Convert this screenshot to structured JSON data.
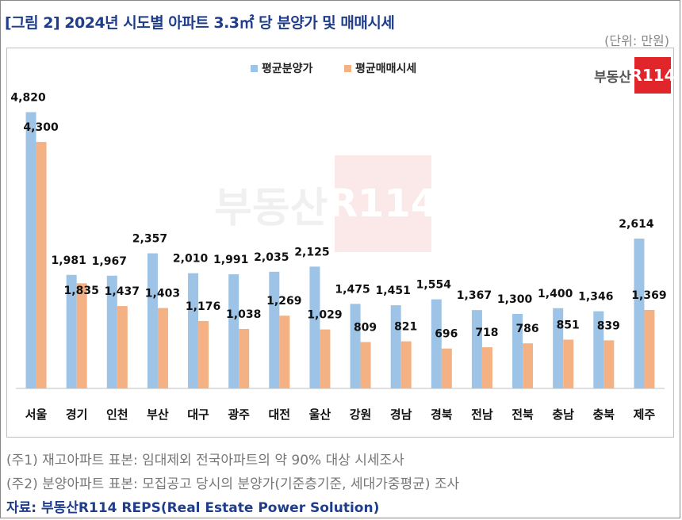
{
  "title": "[그림 2] 2024년 시도별 아파트 3.3㎡ 당 분양가 및 매매시세",
  "unit": "(단위: 만원)",
  "logo": {
    "text": "부동산",
    "box_text": "R114"
  },
  "notes": [
    "(주1) 재고아파트 표본: 임대제외 전국아파트의 약 90% 대상 시세조사",
    "(주2) 분양아파트 표본: 모집공고 당시의 분양가(기준층기준, 세대가중평균) 조사"
  ],
  "source": "자료: 부동산R114 REPS(Real Estate Power Solution)",
  "colors": {
    "series1": "#9dc3e6",
    "series2": "#f4b183",
    "title": "#1f3d8a",
    "logo_red": "#e0262b"
  },
  "chart_data": {
    "type": "bar",
    "categories": [
      "서울",
      "경기",
      "인천",
      "부산",
      "대구",
      "광주",
      "대전",
      "울산",
      "강원",
      "경남",
      "경북",
      "전남",
      "전북",
      "충남",
      "충북",
      "제주"
    ],
    "series": [
      {
        "name": "평균분양가",
        "values": [
          4820,
          1981,
          1967,
          2357,
          2010,
          1991,
          2035,
          2125,
          1475,
          1451,
          1554,
          1367,
          1300,
          1400,
          1346,
          2614
        ],
        "labels": [
          "4,820",
          "1,981",
          "1,967",
          "2,357",
          "2,010",
          "1,991",
          "2,035",
          "2,125",
          "1,475",
          "1,451",
          "1,554",
          "1,367",
          "1,300",
          "1,400",
          "1,346",
          "2,614"
        ]
      },
      {
        "name": "평균매매시세",
        "values": [
          4300,
          1835,
          1437,
          1403,
          1176,
          1038,
          1269,
          1029,
          809,
          821,
          696,
          718,
          786,
          851,
          839,
          1369
        ],
        "labels": [
          "4,300",
          "1,835",
          "1,437",
          "1,403",
          "1,176",
          "1,038",
          "1,269",
          "1,029",
          "809",
          "821",
          "696",
          "718",
          "786",
          "851",
          "839",
          "1,369"
        ]
      }
    ],
    "ylim": [
      0,
      5200
    ],
    "grid": false,
    "legend": "top-center"
  }
}
